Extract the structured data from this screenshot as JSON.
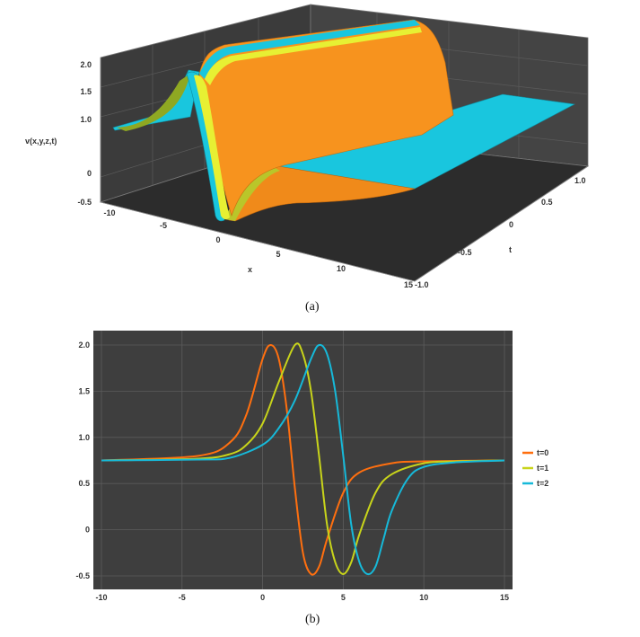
{
  "captions": {
    "a": "(a)",
    "b": "(b)"
  },
  "chart_data": [
    {
      "type": "surface3d",
      "xlabel": "x",
      "ylabel": "t",
      "zlabel": "v(x,y,z,t)",
      "x_ticks": [
        "-10",
        "-5",
        "0",
        "5",
        "10",
        "15"
      ],
      "t_ticks": [
        "-1.0",
        "-0.5",
        "0",
        "0.5",
        "1.0"
      ],
      "z_ticks": [
        "-0.5",
        "0",
        "1.0",
        "1.5",
        "2.0"
      ],
      "xlim": [
        -10,
        15
      ],
      "tlim": [
        -1,
        1
      ],
      "zlim": [
        -0.5,
        2.0
      ],
      "colors": {
        "top": "#f7931e",
        "side": "#17c3dc",
        "edge": "#e8f032",
        "background": "#3a3a3a"
      }
    },
    {
      "type": "line",
      "xlim": [
        -10,
        15
      ],
      "ylim": [
        -0.55,
        2.1
      ],
      "x_ticks": [
        "-10",
        "-5",
        "0",
        "5",
        "10",
        "15"
      ],
      "y_ticks": [
        "-0.5",
        "0",
        "0.5",
        "1.0",
        "1.5",
        "2.0"
      ],
      "legend_position": "right",
      "background": "#3e3e3e",
      "series": [
        {
          "name": "t=0",
          "color": "#ff6f0f",
          "x": [
            -10,
            -4,
            -2,
            -1,
            0,
            0.5,
            1,
            1.5,
            2,
            2.5,
            3,
            3.5,
            4,
            5,
            6,
            8,
            10,
            15
          ],
          "y": [
            0.75,
            0.8,
            0.95,
            1.25,
            1.85,
            2.0,
            1.85,
            1.3,
            0.45,
            -0.25,
            -0.48,
            -0.4,
            -0.1,
            0.4,
            0.62,
            0.72,
            0.74,
            0.75
          ]
        },
        {
          "name": "t=1",
          "color": "#c8d41a",
          "x": [
            -10,
            -4,
            -2,
            -1,
            0,
            1,
            2,
            2.5,
            3,
            3.5,
            4,
            4.5,
            5,
            5.5,
            6,
            7,
            8,
            10,
            12,
            15
          ],
          "y": [
            0.75,
            0.77,
            0.82,
            0.92,
            1.15,
            1.6,
            2.0,
            1.9,
            1.5,
            0.8,
            0.05,
            -0.35,
            -0.48,
            -0.35,
            -0.05,
            0.4,
            0.6,
            0.72,
            0.74,
            0.75
          ]
        },
        {
          "name": "t=2",
          "color": "#16b9d9",
          "x": [
            -10,
            -4,
            -2,
            0,
            1,
            2,
            3,
            3.5,
            4,
            4.5,
            5,
            5.5,
            6,
            6.5,
            7,
            7.5,
            8,
            9,
            10,
            12,
            15
          ],
          "y": [
            0.75,
            0.76,
            0.78,
            0.92,
            1.1,
            1.4,
            1.85,
            2.0,
            1.9,
            1.5,
            0.8,
            0.05,
            -0.35,
            -0.48,
            -0.4,
            -0.1,
            0.2,
            0.55,
            0.68,
            0.73,
            0.75
          ]
        }
      ]
    }
  ]
}
